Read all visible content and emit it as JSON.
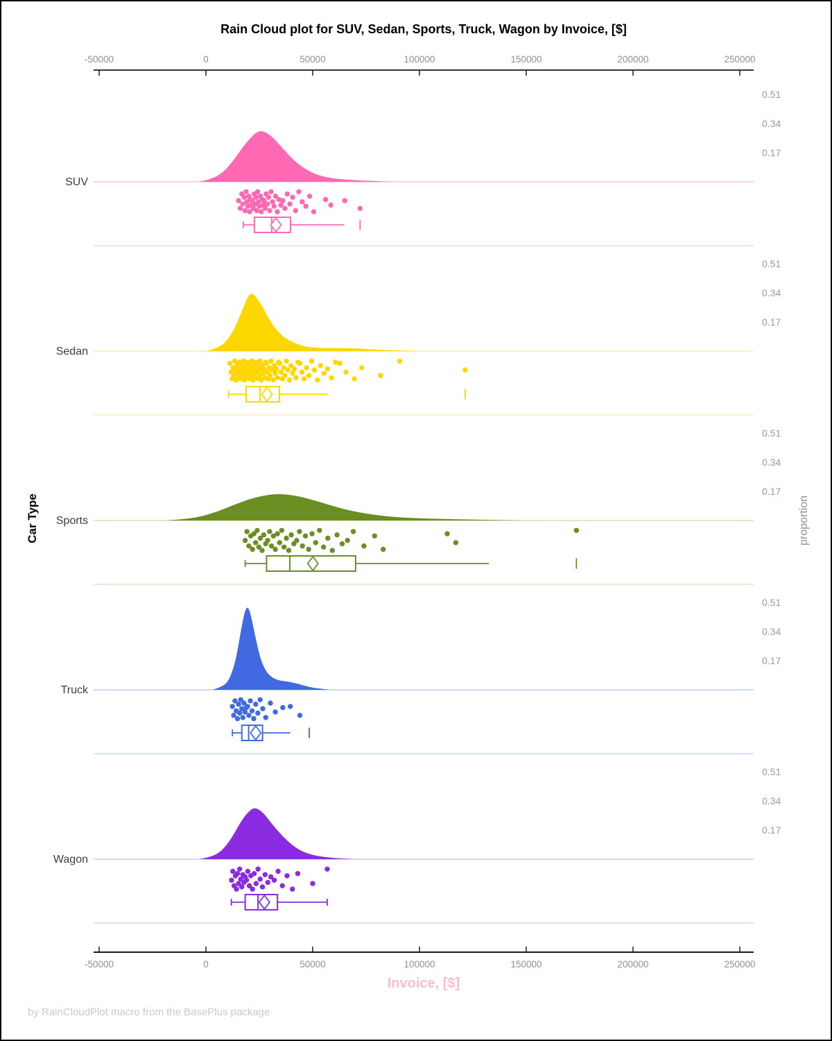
{
  "title": "Rain Cloud plot for SUV, Sedan, Sports, Truck, Wagon by Invoice, [$]",
  "footer": "by RainCloudPlot macro from the BasePlus package",
  "x_axis": {
    "label": "Invoice, [$]",
    "label_color": "#fbbcd2",
    "ticks": [
      -50000,
      0,
      50000,
      100000,
      150000,
      200000,
      250000
    ],
    "tick_label_color": "#8f8f8f"
  },
  "y_axis": {
    "label": "Car Type"
  },
  "right_axis": {
    "label": "proportion",
    "ticks": [
      0.17,
      0.34,
      0.51
    ],
    "tick_label_color": "#9a9a9a"
  },
  "chart_data": {
    "type": "raincloud",
    "title": "Rain Cloud plot for SUV, Sedan, Sports, Truck, Wagon by Invoice, [$]",
    "xlabel": "Invoice, [$]",
    "ylabel": "Car Type",
    "ylabel_right": "proportion",
    "x_range": [
      -50000,
      250000
    ],
    "proportion_ticks": [
      0.17,
      0.34,
      0.51
    ],
    "categories": [
      "SUV",
      "Sedan",
      "Sports",
      "Truck",
      "Wagon"
    ],
    "series": [
      {
        "name": "SUV",
        "color": "#FF69B4",
        "light_color": "#ffc4de",
        "peak_proportion": 0.3,
        "density": [
          [
            -3000,
            0
          ],
          [
            3000,
            0.06
          ],
          [
            8000,
            0.18
          ],
          [
            13000,
            0.42
          ],
          [
            18000,
            0.72
          ],
          [
            23000,
            0.95
          ],
          [
            26000,
            1
          ],
          [
            30000,
            0.92
          ],
          [
            35000,
            0.7
          ],
          [
            40000,
            0.46
          ],
          [
            46000,
            0.26
          ],
          [
            52000,
            0.13
          ],
          [
            60000,
            0.06
          ],
          [
            70000,
            0.03
          ],
          [
            80000,
            0.015
          ],
          [
            88000,
            0
          ]
        ],
        "box": {
          "whisker_low": 17500,
          "q1": 22700,
          "median": 30800,
          "q3": 39600,
          "whisker_high": 64800,
          "mean": 32800,
          "outliers": [
            72200
          ],
          "cap_low": true,
          "cap_high": false
        },
        "points": {
          "x": [
            15300,
            16100,
            16800,
            17200,
            17900,
            18300,
            18800,
            19200,
            19600,
            20100,
            20500,
            20900,
            21300,
            21800,
            22200,
            22600,
            23000,
            23400,
            23800,
            24200,
            24600,
            25000,
            25500,
            25900,
            26300,
            26800,
            27200,
            27700,
            28200,
            28800,
            29300,
            29900,
            30500,
            31200,
            31900,
            32600,
            33400,
            34200,
            35100,
            36000,
            37000,
            38100,
            39300,
            40600,
            42000,
            43500,
            45100,
            46800,
            48600,
            50500,
            56000,
            58500,
            65000,
            72200
          ],
          "jitter": [
            0.45,
            0.8,
            0.15,
            0.6,
            0.3,
            0.9,
            0.05,
            0.5,
            0.7,
            0.25,
            0.95,
            0.4,
            0.65
          ]
        }
      },
      {
        "name": "Sedan",
        "color": "#FFD700",
        "light_color": "#ffeeaa",
        "peak_proportion": 0.34,
        "density": [
          [
            0,
            0
          ],
          [
            5000,
            0.05
          ],
          [
            9000,
            0.14
          ],
          [
            13000,
            0.35
          ],
          [
            17000,
            0.7
          ],
          [
            20000,
            0.97
          ],
          [
            22000,
            1
          ],
          [
            26000,
            0.8
          ],
          [
            30000,
            0.52
          ],
          [
            34000,
            0.32
          ],
          [
            38000,
            0.2
          ],
          [
            44000,
            0.1
          ],
          [
            50000,
            0.06
          ],
          [
            58000,
            0.05
          ],
          [
            66000,
            0.055
          ],
          [
            74000,
            0.04
          ],
          [
            82000,
            0.02
          ],
          [
            92000,
            0.01
          ],
          [
            100000,
            0
          ]
        ],
        "box": {
          "whisker_low": 10700,
          "q1": 18800,
          "median": 25300,
          "q3": 34400,
          "whisker_high": 57100,
          "mean": 28600,
          "outliers": [
            121400
          ],
          "cap_low": true,
          "cap_high": false
        },
        "points": {
          "x": [
            11200,
            11800,
            12300,
            12700,
            13100,
            13500,
            13800,
            14200,
            14500,
            14900,
            15200,
            15500,
            15800,
            16100,
            16400,
            16700,
            17000,
            17300,
            17600,
            17900,
            18200,
            18500,
            18800,
            19100,
            19400,
            19700,
            20000,
            20300,
            20600,
            20900,
            21200,
            21500,
            21800,
            22100,
            22400,
            22700,
            23000,
            23300,
            23600,
            23900,
            24200,
            24500,
            24800,
            25100,
            25400,
            25700,
            26000,
            26400,
            26800,
            27200,
            27600,
            28000,
            28400,
            28800,
            29200,
            29600,
            30000,
            30500,
            31000,
            31500,
            32000,
            32500,
            33000,
            33500,
            34000,
            34600,
            35200,
            35800,
            36400,
            37000,
            37700,
            38400,
            39100,
            39800,
            40600,
            41400,
            42200,
            43100,
            44000,
            45000,
            46000,
            47100,
            48300,
            49500,
            50800,
            52200,
            53700,
            55300,
            57000,
            58800,
            60700,
            62700,
            65600,
            69500,
            73000,
            81800,
            90800,
            121400
          ],
          "jitter": [
            0.15,
            0.55,
            0.85,
            0.35,
            0.7,
            0.05,
            0.45,
            0.9,
            0.25,
            0.6,
            0.4,
            0.8,
            0.1
          ]
        }
      },
      {
        "name": "Sports",
        "color": "#6B8E23",
        "light_color": "#d9e0c3",
        "peak_proportion": 0.155,
        "density": [
          [
            -19000,
            0
          ],
          [
            -10000,
            0.05
          ],
          [
            -2000,
            0.15
          ],
          [
            6000,
            0.35
          ],
          [
            14000,
            0.62
          ],
          [
            22000,
            0.85
          ],
          [
            30000,
            0.98
          ],
          [
            35000,
            1
          ],
          [
            42000,
            0.94
          ],
          [
            50000,
            0.78
          ],
          [
            58000,
            0.58
          ],
          [
            66000,
            0.4
          ],
          [
            74000,
            0.27
          ],
          [
            82000,
            0.18
          ],
          [
            90000,
            0.12
          ],
          [
            100000,
            0.08
          ],
          [
            110000,
            0.06
          ],
          [
            122000,
            0.04
          ],
          [
            135000,
            0.02
          ],
          [
            150000,
            0
          ]
        ],
        "box": {
          "whisker_low": 18400,
          "q1": 28400,
          "median": 39300,
          "q3": 70100,
          "whisker_high": 132500,
          "mean": 50100,
          "outliers": [
            173500
          ],
          "cap_low": true,
          "cap_high": false
        },
        "points": {
          "x": [
            18400,
            19200,
            20100,
            21000,
            21800,
            22500,
            23300,
            24000,
            24800,
            25500,
            26300,
            27100,
            28000,
            28900,
            29800,
            30700,
            31600,
            32500,
            33500,
            34500,
            35500,
            36600,
            37700,
            38800,
            40000,
            41200,
            42500,
            43800,
            45200,
            46600,
            48100,
            49700,
            51400,
            53200,
            55100,
            57100,
            59200,
            61400,
            63800,
            66300,
            69000,
            74000,
            79000,
            83000,
            113000,
            117000,
            173500
          ],
          "jitter": [
            0.5,
            0.1,
            0.75,
            0.3,
            0.9,
            0.2,
            0.6,
            0.05,
            0.8,
            0.4,
            0.95,
            0.25,
            0.65
          ]
        }
      },
      {
        "name": "Truck",
        "color": "#4169E1",
        "light_color": "#bccded",
        "peak_proportion": 0.49,
        "density": [
          [
            3000,
            0
          ],
          [
            8000,
            0.04
          ],
          [
            11000,
            0.12
          ],
          [
            14000,
            0.35
          ],
          [
            16000,
            0.65
          ],
          [
            18000,
            0.92
          ],
          [
            19500,
            1
          ],
          [
            21000,
            0.9
          ],
          [
            23000,
            0.65
          ],
          [
            25000,
            0.42
          ],
          [
            27000,
            0.27
          ],
          [
            30000,
            0.16
          ],
          [
            34000,
            0.11
          ],
          [
            38000,
            0.1
          ],
          [
            42000,
            0.08
          ],
          [
            46000,
            0.05
          ],
          [
            50000,
            0.025
          ],
          [
            55000,
            0.01
          ],
          [
            58000,
            0
          ]
        ],
        "box": {
          "whisker_low": 12400,
          "q1": 16800,
          "median": 20000,
          "q3": 26500,
          "whisker_high": 39500,
          "mean": 23300,
          "outliers": [
            48400
          ],
          "cap_low": true,
          "cap_high": false
        },
        "points": {
          "x": [
            12400,
            13000,
            13600,
            14200,
            14800,
            15300,
            15800,
            16300,
            16800,
            17300,
            17800,
            18300,
            18900,
            19500,
            20100,
            20800,
            21600,
            22400,
            23300,
            24300,
            25400,
            26600,
            28000,
            30200,
            32500,
            36000,
            39500,
            44000
          ],
          "jitter": [
            0.35,
            0.75,
            0.1,
            0.55,
            0.9,
            0.25,
            0.65,
            0.05,
            0.45,
            0.85,
            0.2,
            0.6,
            0.4
          ]
        }
      },
      {
        "name": "Wagon",
        "color": "#8A2BE2",
        "light_color": "#dcc6f0",
        "peak_proportion": 0.3,
        "density": [
          [
            -3000,
            0
          ],
          [
            2000,
            0.04
          ],
          [
            7000,
            0.14
          ],
          [
            12000,
            0.4
          ],
          [
            17000,
            0.78
          ],
          [
            21000,
            0.97
          ],
          [
            23500,
            1
          ],
          [
            27000,
            0.9
          ],
          [
            31000,
            0.68
          ],
          [
            36000,
            0.44
          ],
          [
            41000,
            0.25
          ],
          [
            46000,
            0.13
          ],
          [
            52000,
            0.06
          ],
          [
            58000,
            0.03
          ],
          [
            64000,
            0.012
          ],
          [
            70000,
            0
          ]
        ],
        "box": {
          "whisker_low": 11900,
          "q1": 18400,
          "median": 24400,
          "q3": 33500,
          "whisker_high": 56800,
          "mean": 27400,
          "outliers": [],
          "cap_low": true,
          "cap_high": true
        },
        "points": {
          "x": [
            12000,
            12600,
            13200,
            13800,
            14300,
            14800,
            15300,
            15800,
            16300,
            16800,
            17300,
            17800,
            18400,
            19000,
            19600,
            20300,
            21000,
            21800,
            22600,
            23500,
            24400,
            25400,
            26500,
            27700,
            29000,
            30400,
            32000,
            33800,
            35800,
            38000,
            40500,
            43000,
            50000,
            56800
          ],
          "jitter": [
            0.55,
            0.15,
            0.8,
            0.35,
            0.95,
            0.25,
            0.7,
            0.05,
            0.5,
            0.85,
            0.3,
            0.65,
            0.4
          ]
        }
      }
    ]
  }
}
